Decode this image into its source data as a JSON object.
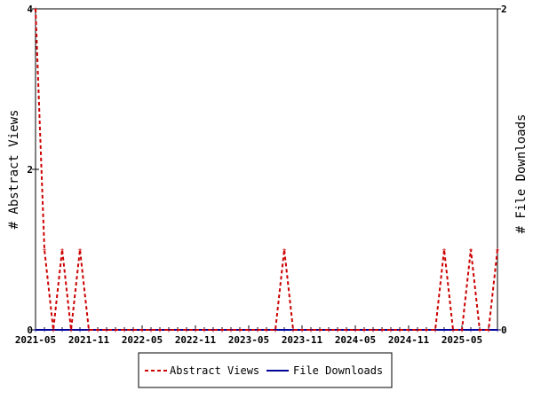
{
  "chart_data": {
    "type": "line",
    "title": "",
    "xlabel": "",
    "ylabel_left": "# Abstract Views",
    "ylabel_right": "# File Downloads",
    "x_categories": [
      "2021-05",
      "2021-06",
      "2021-07",
      "2021-08",
      "2021-09",
      "2021-10",
      "2021-11",
      "2021-12",
      "2022-01",
      "2022-02",
      "2022-03",
      "2022-04",
      "2022-05",
      "2022-06",
      "2022-07",
      "2022-08",
      "2022-09",
      "2022-10",
      "2022-11",
      "2022-12",
      "2023-01",
      "2023-02",
      "2023-03",
      "2023-04",
      "2023-05",
      "2023-06",
      "2023-07",
      "2023-08",
      "2023-09",
      "2023-10",
      "2023-11",
      "2023-12",
      "2024-01",
      "2024-02",
      "2024-03",
      "2024-04",
      "2024-05",
      "2024-06",
      "2024-07",
      "2024-08",
      "2024-09",
      "2024-10",
      "2024-11",
      "2024-12",
      "2025-01",
      "2025-02",
      "2025-03",
      "2025-04",
      "2025-05",
      "2025-06",
      "2025-07",
      "2025-08",
      "2025-09"
    ],
    "x_tick_labels": [
      "2021-05",
      "2021-11",
      "2022-05",
      "2022-11",
      "2023-05",
      "2023-11",
      "2024-05",
      "2024-11",
      "2025-05"
    ],
    "y_left": {
      "range": [
        0,
        4
      ],
      "ticks": [
        "0",
        "2",
        "4"
      ]
    },
    "y_right": {
      "range": [
        0,
        2
      ],
      "ticks": [
        "0",
        "2"
      ]
    },
    "grid": false,
    "legend_position": "bottom",
    "series": [
      {
        "name": "Abstract Views",
        "axis": "left",
        "color": "#cc0000",
        "style": "dashed",
        "values": [
          4,
          1,
          0,
          1,
          0,
          1,
          0,
          0,
          0,
          0,
          0,
          0,
          0,
          0,
          0,
          0,
          0,
          0,
          0,
          0,
          0,
          0,
          0,
          0,
          0,
          0,
          0,
          0,
          1,
          0,
          0,
          0,
          0,
          0,
          0,
          0,
          0,
          0,
          0,
          0,
          0,
          0,
          0,
          0,
          0,
          0,
          1,
          0,
          0,
          1,
          0,
          0,
          1
        ]
      },
      {
        "name": "File Downloads",
        "axis": "right",
        "color": "#000099",
        "style": "solid",
        "values": [
          0,
          0,
          0,
          0,
          0,
          0,
          0,
          0,
          0,
          0,
          0,
          0,
          0,
          0,
          0,
          0,
          0,
          0,
          0,
          0,
          0,
          0,
          0,
          0,
          0,
          0,
          0,
          0,
          0,
          0,
          0,
          0,
          0,
          0,
          0,
          0,
          0,
          0,
          0,
          0,
          0,
          0,
          0,
          0,
          0,
          0,
          0,
          0,
          0,
          0,
          0,
          0,
          0
        ]
      }
    ]
  }
}
